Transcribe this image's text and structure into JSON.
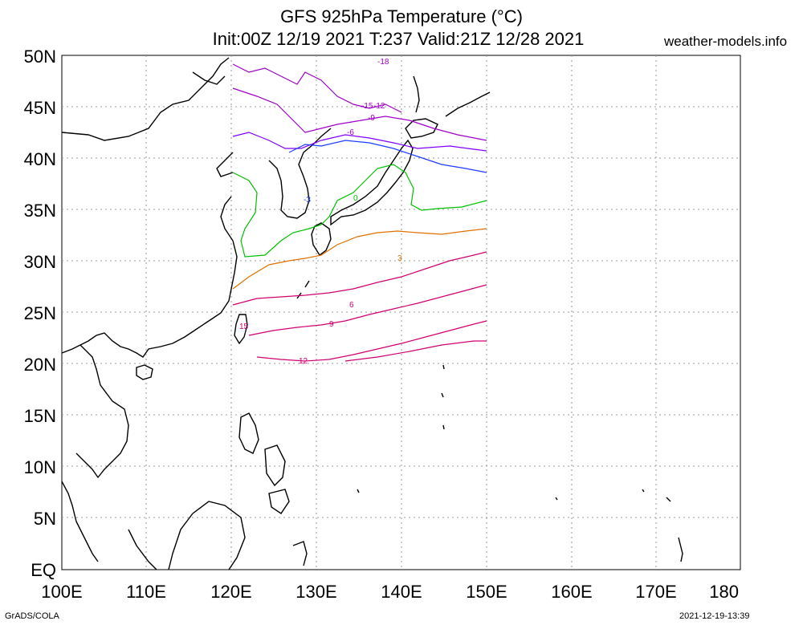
{
  "header": {
    "title_line1": "GFS 925hPa Temperature (°C)",
    "title_line2": "Init:00Z 12/19 2021 T:237 Valid:21Z 12/28 2021",
    "site": "weather-models.info"
  },
  "footer": {
    "credit": "GrADS/COLA",
    "timestamp": "2021-12-19-13:39"
  },
  "map": {
    "lat_labels": [
      "EQ",
      "5N",
      "10N",
      "15N",
      "20N",
      "25N",
      "30N",
      "35N",
      "40N",
      "45N",
      "50N"
    ],
    "lon_labels": [
      "100E",
      "110E",
      "120E",
      "130E",
      "140E",
      "150E",
      "160E",
      "170E",
      "180"
    ],
    "contour_labels": [
      "-18",
      "-15",
      "-12",
      "-9",
      "-6",
      "-3",
      "0",
      "3",
      "6",
      "9",
      "12",
      "15"
    ],
    "colors": {
      "coastline": "#000000",
      "grid": "#999999",
      "cold_deep": "#a000c8",
      "cold": "#8000ff",
      "cool_blue": "#1e3cff",
      "zero_green": "#00c000",
      "warm_orange": "#e07000",
      "warm_magenta": "#d00070"
    }
  }
}
